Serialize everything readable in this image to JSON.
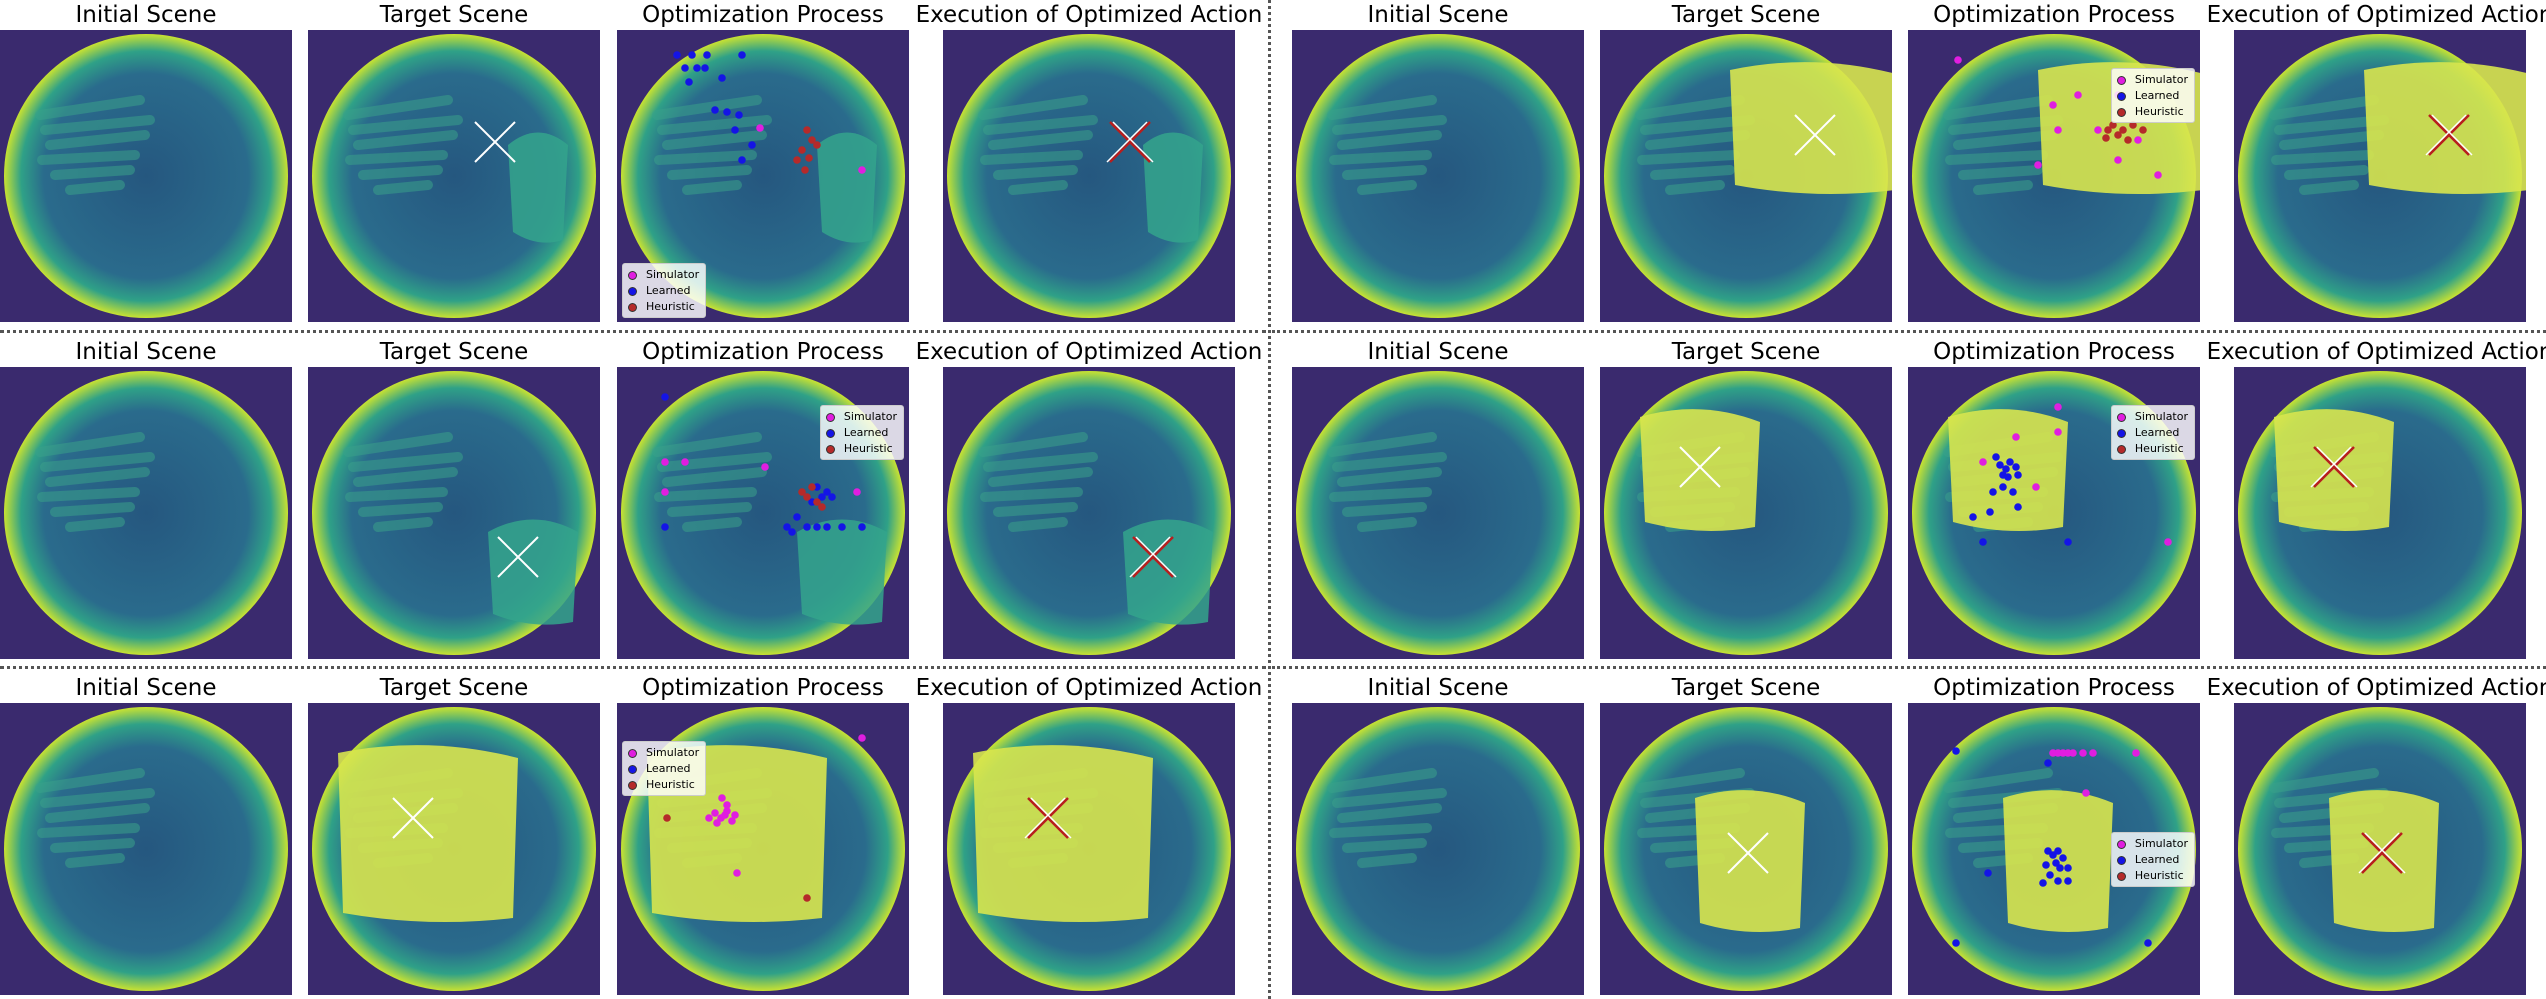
{
  "titles": {
    "initial": "Initial Scene",
    "target": "Target Scene",
    "optimization": "Optimization Process",
    "execution": "Execution of Optimized Action"
  },
  "legend": [
    {
      "label": "Simulator",
      "color": "#e01ee0"
    },
    {
      "label": "Learned",
      "color": "#1414e6"
    },
    {
      "label": "Heuristic",
      "color": "#b52a2a"
    }
  ],
  "colors": {
    "background": "#3a2a6e",
    "ring": "#c8e232",
    "tray": "#2c8a8e",
    "push_patch": "#d8e64e",
    "target_marker": "#ffffff",
    "executed_marker": "#b81e1e"
  }
}
